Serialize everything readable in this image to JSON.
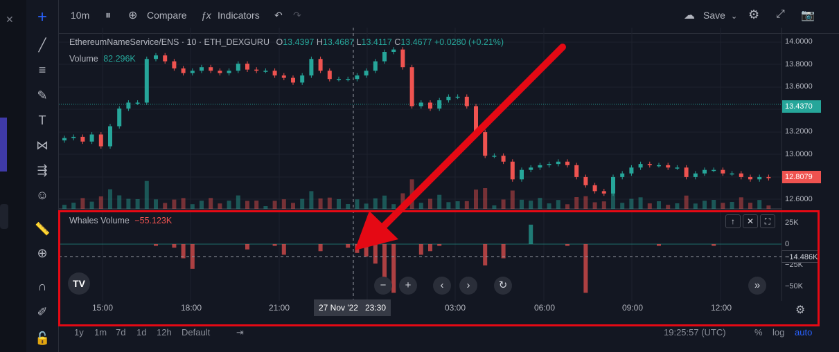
{
  "toolbar": {
    "interval": "10m",
    "compare": "Compare",
    "indicators": "Indicators",
    "save": "Save"
  },
  "legend": {
    "symbol": "EthereumNameService/ENS · 10 · ETH_DEXGURU",
    "o_label": "O",
    "o": "13.4397",
    "h_label": "H",
    "h": "13.4687",
    "l_label": "L",
    "l": "13.4117",
    "c_label": "C",
    "c": "13.4677",
    "change": "+0.0280 (+0.21%)",
    "volume_label": "Volume",
    "volume_value": "82.296K"
  },
  "whales": {
    "label": "Whales Volume",
    "value": "−55.123K"
  },
  "price_axis": [
    "14.0000",
    "13.8000",
    "13.6000",
    "13.4000",
    "13.2000",
    "13.0000",
    "12.8000",
    "12.6000"
  ],
  "price_tags": {
    "current": "13.4370",
    "last": "12.8079"
  },
  "whales_axis": [
    "25K",
    "0",
    "−25K",
    "−50K"
  ],
  "whales_tag": "−14.486K",
  "time_axis": [
    "15:00",
    "18:00",
    "21:00",
    "03:00",
    "06:00",
    "09:00",
    "12:00"
  ],
  "crosshair_time": "27 Nov '22   23:30",
  "ranges": [
    "1y",
    "1m",
    "7d",
    "1d",
    "12h",
    "Default"
  ],
  "clock": "19:25:57 (UTC)",
  "bottom_right": {
    "percent": "%",
    "log": "log",
    "auto": "auto"
  },
  "colors": {
    "up": "#26a69a",
    "down": "#ef5350",
    "annotation": "#e50914",
    "bg": "#131722"
  },
  "chart_data": {
    "type": "candlestick",
    "x_axis": [
      "15:00",
      "18:00",
      "21:00",
      "27 Nov '22 23:30",
      "03:00",
      "06:00",
      "09:00",
      "12:00"
    ],
    "y_range": [
      12.55,
      14.05
    ],
    "closes": [
      13.15,
      13.16,
      13.12,
      13.18,
      13.08,
      13.25,
      13.4,
      13.45,
      13.45,
      13.82,
      13.85,
      13.8,
      13.74,
      13.7,
      13.72,
      13.75,
      13.72,
      13.7,
      13.72,
      13.78,
      13.73,
      13.72,
      13.72,
      13.68,
      13.66,
      13.62,
      13.68,
      13.82,
      13.72,
      13.65,
      13.65,
      13.65,
      13.68,
      13.72,
      13.8,
      13.88,
      13.9,
      13.75,
      13.42,
      13.45,
      13.4,
      13.47,
      13.5,
      13.5,
      13.42,
      13.2,
      13.0,
      13.0,
      12.95,
      12.8,
      12.88,
      12.9,
      12.92,
      12.93,
      12.95,
      12.92,
      12.82,
      12.75,
      12.7,
      12.68,
      12.82,
      12.85,
      12.9,
      12.93,
      12.92,
      12.92,
      12.9,
      12.9,
      12.82,
      12.85,
      12.88,
      12.88,
      12.85,
      12.85,
      12.82,
      12.8,
      12.82,
      12.81
    ],
    "whales_volume": [
      0,
      0,
      0,
      0,
      0,
      0,
      0,
      0,
      0,
      0,
      -2,
      0,
      -4,
      -16,
      -28,
      0,
      0,
      0,
      0,
      0,
      -6,
      0,
      0,
      -2,
      -12,
      0,
      0,
      0,
      -8,
      0,
      0,
      -4,
      -10,
      -14,
      -22,
      -40,
      -55,
      0,
      0,
      -12,
      -8,
      -2,
      0,
      0,
      0,
      0,
      -24,
      0,
      -16,
      0,
      0,
      22,
      0,
      0,
      0,
      -2,
      0,
      -55,
      0,
      0,
      0,
      0,
      0,
      0,
      0,
      -2,
      0,
      0,
      0,
      0,
      0,
      -2,
      0,
      0,
      0,
      0,
      0,
      0
    ],
    "whales_range": [
      -60,
      30
    ]
  }
}
